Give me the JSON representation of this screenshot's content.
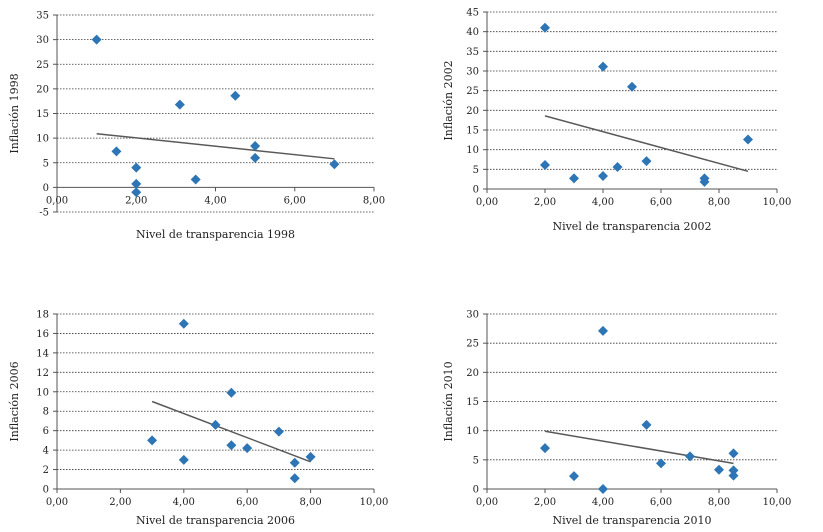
{
  "chart_data": [
    {
      "type": "scatter",
      "xlabel": "Nivel de transparencia 1998",
      "ylabel": "Inflación 1998",
      "xlim": [
        0,
        8
      ],
      "ylim": [
        -5,
        35
      ],
      "xticks": [
        0,
        2,
        4,
        6,
        8
      ],
      "xtick_labels": [
        "0,00",
        "2,00",
        "4,00",
        "6,00",
        "8,00"
      ],
      "yticks": [
        -5,
        0,
        5,
        10,
        15,
        20,
        25,
        30,
        35
      ],
      "ytick_labels": [
        "-5",
        "0",
        "5",
        "10",
        "15",
        "20",
        "25",
        "30",
        "35"
      ],
      "grid": true,
      "color": "#2E75B6",
      "points": [
        {
          "x": 1.0,
          "y": 30.0
        },
        {
          "x": 1.5,
          "y": 7.3
        },
        {
          "x": 2.0,
          "y": 4.0
        },
        {
          "x": 2.0,
          "y": 0.7
        },
        {
          "x": 2.0,
          "y": -1.0
        },
        {
          "x": 3.1,
          "y": 16.8
        },
        {
          "x": 3.5,
          "y": 1.6
        },
        {
          "x": 4.5,
          "y": 18.6
        },
        {
          "x": 5.0,
          "y": 8.4
        },
        {
          "x": 5.0,
          "y": 6.0
        },
        {
          "x": 7.0,
          "y": 4.7
        }
      ],
      "trendline": [
        {
          "x": 1.0,
          "y": 10.9
        },
        {
          "x": 7.0,
          "y": 5.8
        }
      ]
    },
    {
      "type": "scatter",
      "xlabel": "Nivel de transparencia 2002",
      "ylabel": "Inflación 2002",
      "xlim": [
        0,
        10
      ],
      "ylim": [
        0,
        45
      ],
      "xticks": [
        0,
        2,
        4,
        6,
        8,
        10
      ],
      "xtick_labels": [
        "0,00",
        "2,00",
        "4,00",
        "6,00",
        "8,00",
        "10,00"
      ],
      "yticks": [
        0,
        5,
        10,
        15,
        20,
        25,
        30,
        35,
        40,
        45
      ],
      "ytick_labels": [
        "0",
        "5",
        "10",
        "15",
        "20",
        "25",
        "30",
        "35",
        "40",
        "45"
      ],
      "grid": true,
      "color": "#2E75B6",
      "points": [
        {
          "x": 2.0,
          "y": 41.0
        },
        {
          "x": 2.0,
          "y": 6.1
        },
        {
          "x": 3.0,
          "y": 2.7
        },
        {
          "x": 4.0,
          "y": 31.1
        },
        {
          "x": 4.0,
          "y": 3.3
        },
        {
          "x": 4.5,
          "y": 5.6
        },
        {
          "x": 5.0,
          "y": 26.0
        },
        {
          "x": 5.5,
          "y": 7.1
        },
        {
          "x": 7.5,
          "y": 2.7
        },
        {
          "x": 7.5,
          "y": 1.8
        },
        {
          "x": 9.0,
          "y": 12.6
        }
      ],
      "trendline": [
        {
          "x": 2.0,
          "y": 18.6
        },
        {
          "x": 9.0,
          "y": 4.5
        }
      ]
    },
    {
      "type": "scatter",
      "xlabel": "Nivel de transparencia 2006",
      "ylabel": "Inflación 2006",
      "xlim": [
        0,
        10
      ],
      "ylim": [
        0,
        18
      ],
      "xticks": [
        0,
        2,
        4,
        6,
        8,
        10
      ],
      "xtick_labels": [
        "0,00",
        "2,00",
        "4,00",
        "6,00",
        "8,00",
        "10,00"
      ],
      "yticks": [
        0,
        2,
        4,
        6,
        8,
        10,
        12,
        14,
        16,
        18
      ],
      "ytick_labels": [
        "0",
        "2",
        "4",
        "6",
        "8",
        "10",
        "12",
        "14",
        "16",
        "18"
      ],
      "grid": true,
      "color": "#2E75B6",
      "points": [
        {
          "x": 3.0,
          "y": 5.0
        },
        {
          "x": 4.0,
          "y": 17.0
        },
        {
          "x": 4.0,
          "y": 3.0
        },
        {
          "x": 5.0,
          "y": 6.6
        },
        {
          "x": 5.5,
          "y": 4.5
        },
        {
          "x": 5.5,
          "y": 9.9
        },
        {
          "x": 6.0,
          "y": 4.2
        },
        {
          "x": 7.0,
          "y": 5.9
        },
        {
          "x": 7.5,
          "y": 2.7
        },
        {
          "x": 7.5,
          "y": 1.1
        },
        {
          "x": 8.0,
          "y": 3.3
        }
      ],
      "trendline": [
        {
          "x": 3.0,
          "y": 9.0
        },
        {
          "x": 8.0,
          "y": 2.8
        }
      ]
    },
    {
      "type": "scatter",
      "xlabel": "Nivel de transparencia 2010",
      "ylabel": "Inflación 2010",
      "xlim": [
        0,
        10
      ],
      "ylim": [
        0,
        30
      ],
      "xticks": [
        0,
        2,
        4,
        6,
        8,
        10
      ],
      "xtick_labels": [
        "0,00",
        "2,00",
        "4,00",
        "6,00",
        "8,00",
        "10,00"
      ],
      "yticks": [
        0,
        5,
        10,
        15,
        20,
        25,
        30
      ],
      "ytick_labels": [
        "0",
        "5",
        "10",
        "15",
        "20",
        "25",
        "30"
      ],
      "grid": true,
      "color": "#2E75B6",
      "points": [
        {
          "x": 2.0,
          "y": 7.0
        },
        {
          "x": 3.0,
          "y": 2.2
        },
        {
          "x": 4.0,
          "y": 27.1
        },
        {
          "x": 4.0,
          "y": 0.0
        },
        {
          "x": 5.5,
          "y": 11.0
        },
        {
          "x": 6.0,
          "y": 4.4
        },
        {
          "x": 7.0,
          "y": 5.6
        },
        {
          "x": 8.0,
          "y": 3.3
        },
        {
          "x": 8.5,
          "y": 6.1
        },
        {
          "x": 8.5,
          "y": 3.2
        },
        {
          "x": 8.5,
          "y": 2.3
        }
      ],
      "trendline": [
        {
          "x": 2.0,
          "y": 9.9
        },
        {
          "x": 8.5,
          "y": 4.4
        }
      ]
    }
  ]
}
